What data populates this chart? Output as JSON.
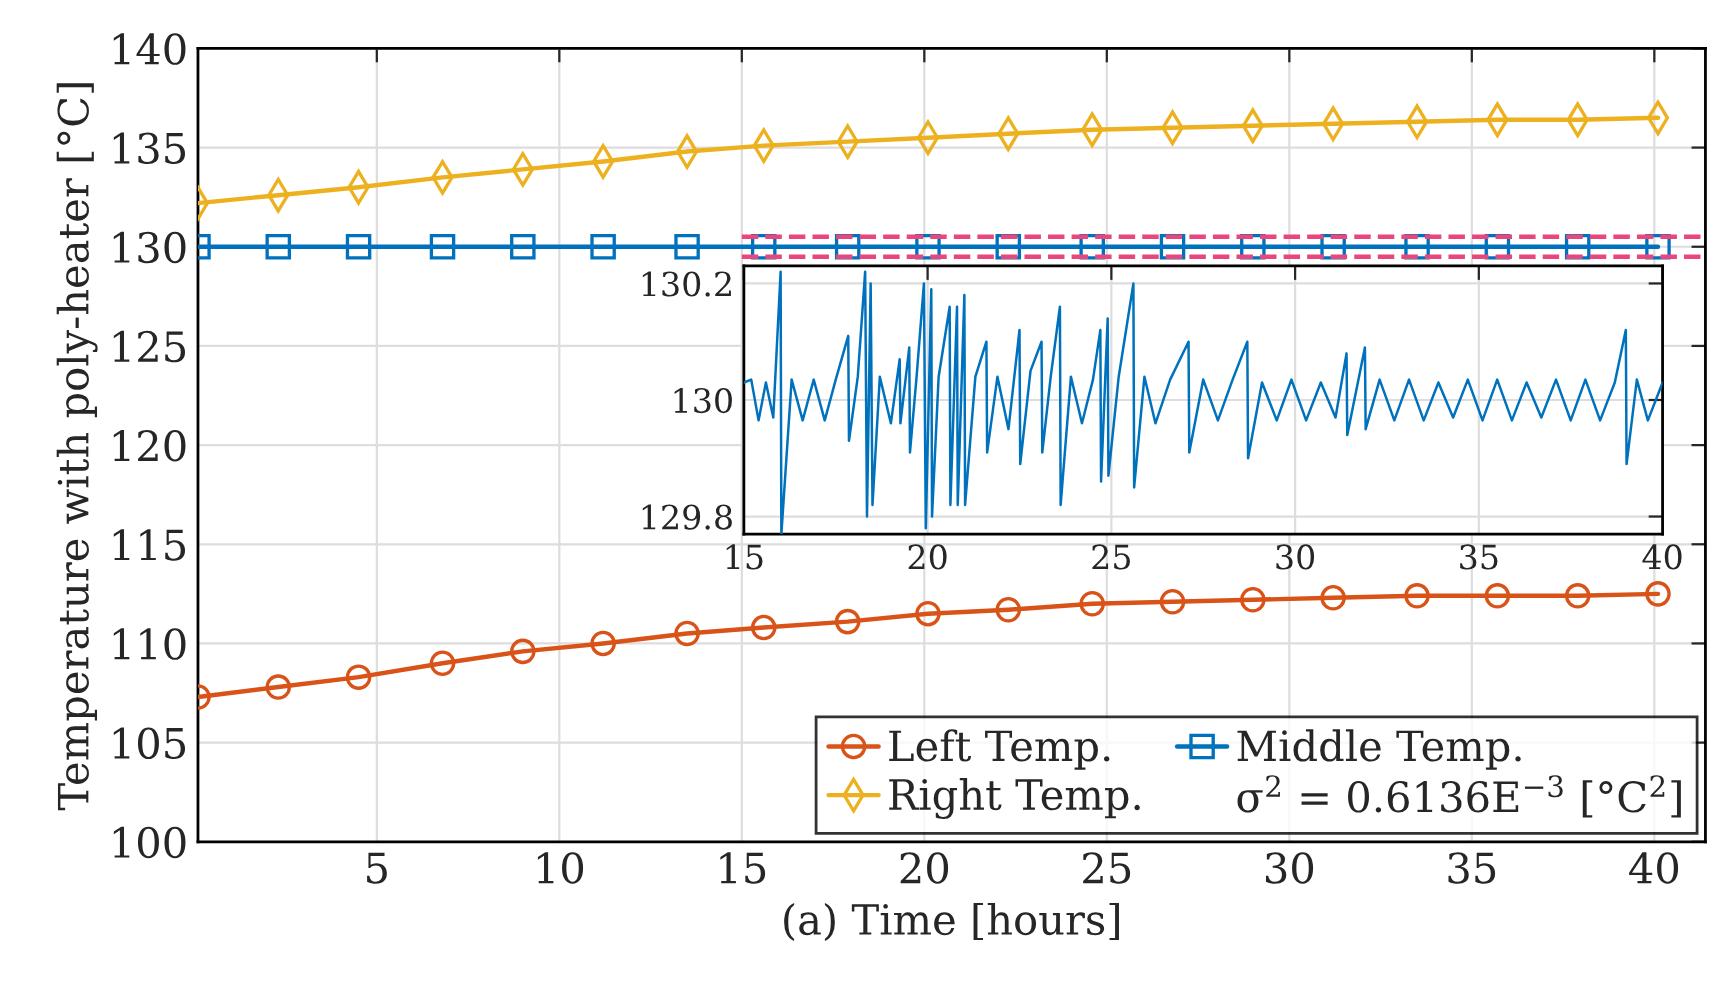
{
  "chart_data": [
    {
      "type": "line",
      "xlabel": "(a) Time [hours]",
      "ylabel": "Temperature with poly-heater [°C]",
      "xlim": [
        0.1,
        41.4
      ],
      "ylim": [
        100,
        140
      ],
      "xticks": [
        5,
        10,
        15,
        20,
        25,
        30,
        35,
        40
      ],
      "yticks": [
        100,
        105,
        110,
        115,
        120,
        125,
        130,
        135,
        140
      ],
      "grid": true,
      "legend": "bottom right",
      "line_style": "solid",
      "x": [
        0.1,
        2.3,
        4.5,
        6.8,
        9.0,
        11.2,
        13.5,
        15.6,
        17.9,
        20.1,
        22.3,
        24.6,
        26.8,
        29.0,
        31.2,
        33.5,
        35.7,
        37.9,
        40.1
      ],
      "series": [
        {
          "name": "Left Temp.",
          "color": "#d95319",
          "marker": "circle",
          "values": [
            107.3,
            107.8,
            108.3,
            109.0,
            109.6,
            110.0,
            110.5,
            110.8,
            111.1,
            111.5,
            111.7,
            112.0,
            112.1,
            112.2,
            112.3,
            112.4,
            112.4,
            112.4,
            112.5
          ]
        },
        {
          "name": "Right Temp.",
          "color": "#edb120",
          "marker": "diamond",
          "values": [
            132.2,
            132.6,
            133.0,
            133.5,
            133.9,
            134.3,
            134.8,
            135.1,
            135.3,
            135.5,
            135.7,
            135.9,
            136.0,
            136.1,
            136.2,
            136.3,
            136.4,
            136.4,
            136.5
          ]
        },
        {
          "name": "Middle Temp.",
          "color": "#0072bd",
          "marker": "square",
          "values": [
            130,
            130,
            130,
            130,
            130,
            130,
            130,
            130,
            130,
            130,
            130,
            130,
            130,
            130,
            130,
            130,
            130,
            130,
            130
          ]
        }
      ],
      "ref_lines": [
        {
          "axis": "y",
          "value": 129.5,
          "color": "#e8467c",
          "line_style": "dashed"
        },
        {
          "axis": "y",
          "value": 130.5,
          "color": "#e8467c",
          "line_style": "dashed"
        }
      ],
      "annotations": [
        "σ$^{2}$ = 0.6136E$^{−3}$ [°C$^{2}$]"
      ]
    },
    {
      "type": "line",
      "xlim": [
        15,
        40
      ],
      "ylim": [
        129.77,
        130.23
      ],
      "xticks": [
        15,
        20,
        25,
        30,
        35,
        40
      ],
      "yticks": [
        129.8,
        130,
        130.2
      ],
      "grid": true,
      "marker": "none",
      "series": [
        {
          "color": "#0072bd",
          "x": [
            15.0,
            15.2,
            15.4,
            15.6,
            15.8,
            16.0,
            16.02,
            16.3,
            16.6,
            16.9,
            17.2,
            17.5,
            17.84,
            17.86,
            18.1,
            18.3,
            18.35,
            18.45,
            18.5,
            18.7,
            19.0,
            19.24,
            19.26,
            19.5,
            19.52,
            19.7,
            19.9,
            19.95,
            20.1,
            20.12,
            20.3,
            20.6,
            20.62,
            20.8,
            20.82,
            21.0,
            21.02,
            21.3,
            21.6,
            21.62,
            21.9,
            22.2,
            22.5,
            22.52,
            22.8,
            23.1,
            23.12,
            23.35,
            23.6,
            23.62,
            23.9,
            24.2,
            24.5,
            24.7,
            24.72,
            24.9,
            24.92,
            25.2,
            25.6,
            25.62,
            25.9,
            26.2,
            26.6,
            27.1,
            27.12,
            27.5,
            27.9,
            28.3,
            28.7,
            28.72,
            29.1,
            29.5,
            29.9,
            30.3,
            30.7,
            31.1,
            31.4,
            31.42,
            31.9,
            31.92,
            32.3,
            32.7,
            33.1,
            33.5,
            33.9,
            34.3,
            34.7,
            35.1,
            35.5,
            35.9,
            36.3,
            36.7,
            37.1,
            37.5,
            37.9,
            38.3,
            38.7,
            39.0,
            39.02,
            39.3,
            39.6,
            40.0
          ],
          "values": [
            130.03,
            130.035,
            129.965,
            130.03,
            129.97,
            130.22,
            129.77,
            130.035,
            129.965,
            130.035,
            129.965,
            130.035,
            130.11,
            129.93,
            130.04,
            130.22,
            129.8,
            130.2,
            129.82,
            130.04,
            129.96,
            130.07,
            129.96,
            130.09,
            129.91,
            130.04,
            130.2,
            129.78,
            130.19,
            129.8,
            130.04,
            130.16,
            129.82,
            130.16,
            129.82,
            130.18,
            129.82,
            130.04,
            130.1,
            129.91,
            130.04,
            129.95,
            130.12,
            129.89,
            130.05,
            130.1,
            129.91,
            130.04,
            130.16,
            129.82,
            130.04,
            129.96,
            130.035,
            130.12,
            129.86,
            130.14,
            129.87,
            130.04,
            130.2,
            129.85,
            130.04,
            129.96,
            130.035,
            130.1,
            129.91,
            130.035,
            129.965,
            130.035,
            130.1,
            129.9,
            130.03,
            129.965,
            130.035,
            129.965,
            130.03,
            129.97,
            130.08,
            129.94,
            130.09,
            129.95,
            130.035,
            129.965,
            130.035,
            129.965,
            130.03,
            129.97,
            130.035,
            129.965,
            130.035,
            129.965,
            130.03,
            129.97,
            130.035,
            129.965,
            130.035,
            129.965,
            130.03,
            130.12,
            129.89,
            130.035,
            129.965,
            130.03
          ]
        }
      ]
    }
  ]
}
